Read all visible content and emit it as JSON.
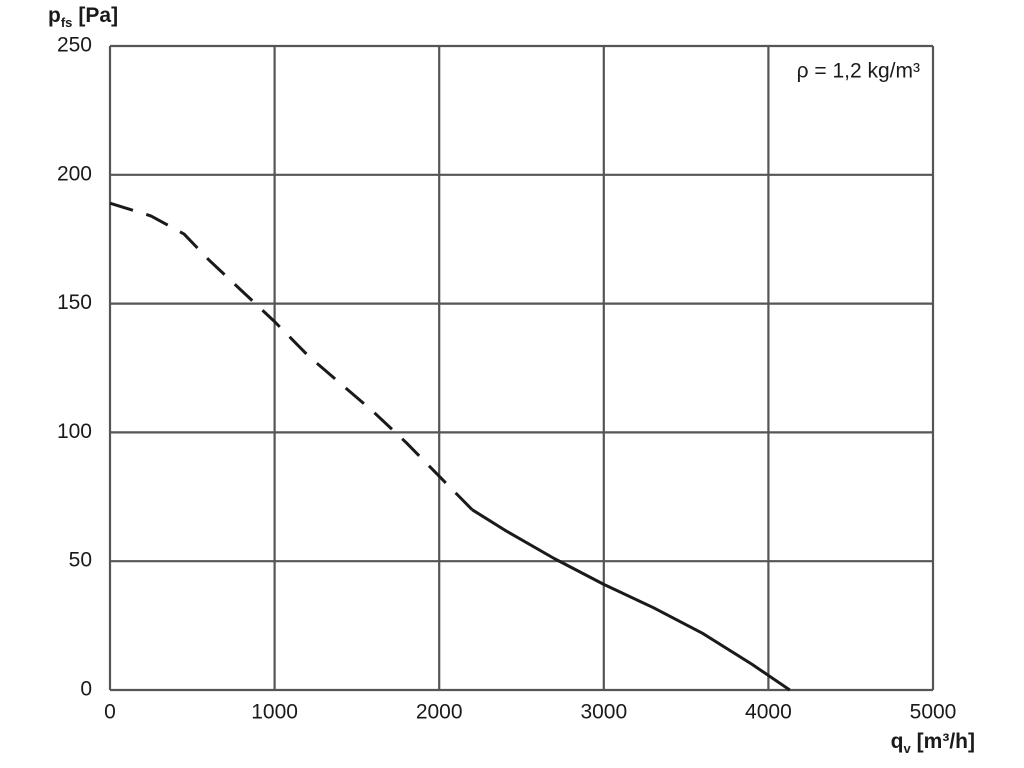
{
  "chart_data": {
    "type": "line",
    "xlabel": {
      "main": "q",
      "sub": "v",
      "unit": "[m³/h]"
    },
    "ylabel": {
      "main": "p",
      "sub": "fs",
      "unit": "[Pa]"
    },
    "annotation": "ρ = 1,2 kg/m³",
    "series": [
      {
        "x": [
          0,
          250,
          450,
          600,
          800,
          1000,
          1200,
          1400,
          1600,
          1800,
          2000,
          2200
        ],
        "values": [
          189,
          184,
          177,
          167,
          155,
          143,
          130,
          119,
          108,
          96,
          83,
          70
        ],
        "color": "#1a1a1a",
        "dashed": true
      },
      {
        "x": [
          2200,
          2400,
          2700,
          3000,
          3300,
          3600,
          3900,
          4130
        ],
        "values": [
          70,
          62,
          51,
          41,
          32,
          22,
          10,
          0
        ],
        "color": "#1a1a1a",
        "dashed": false
      }
    ],
    "xlim": [
      0,
      5000
    ],
    "xticks": [
      0,
      1000,
      2000,
      3000,
      4000,
      5000
    ],
    "ylim": [
      0,
      250
    ],
    "yticks": [
      0,
      50,
      100,
      150,
      200,
      250
    ],
    "grid": true
  }
}
